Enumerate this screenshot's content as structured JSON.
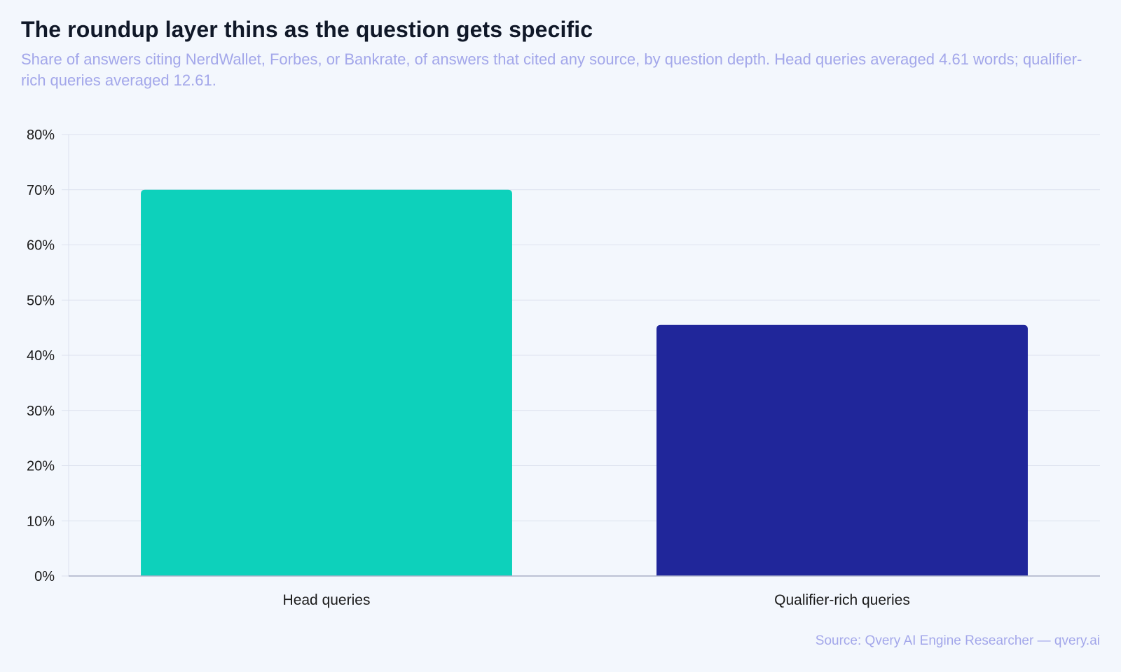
{
  "header": {
    "title": "The roundup layer thins as the question gets specific",
    "subtitle": "Share of answers citing NerdWallet, Forbes, or Bankrate, of answers that cited any source, by question depth. Head queries averaged 4.61 words; qualifier-rich queries averaged 12.61."
  },
  "footer": {
    "source": "Source: Qvery AI Engine Researcher — qvery.ai"
  },
  "chart_data": {
    "type": "bar",
    "title": "The roundup layer thins as the question gets specific",
    "subtitle": "Share of answers citing NerdWallet, Forbes, or Bankrate, of answers that cited any source, by question depth. Head queries averaged 4.61 words; qualifier-rich queries averaged 12.61.",
    "categories": [
      "Head queries",
      "Qualifier-rich queries"
    ],
    "values": [
      70,
      45.5
    ],
    "unit": "%",
    "ylim": [
      0,
      80
    ],
    "yticks": [
      0,
      10,
      20,
      30,
      40,
      50,
      60,
      70,
      80
    ],
    "ytick_labels": [
      "0%",
      "10%",
      "20%",
      "30%",
      "40%",
      "50%",
      "60%",
      "70%",
      "80%"
    ],
    "xlabel": "",
    "ylabel": "",
    "grid": true,
    "legend": "none",
    "colors": [
      "#0dd1bb",
      "#20269a"
    ],
    "grid_color": "#dde2ee",
    "axis_color": "#a9afc7"
  }
}
